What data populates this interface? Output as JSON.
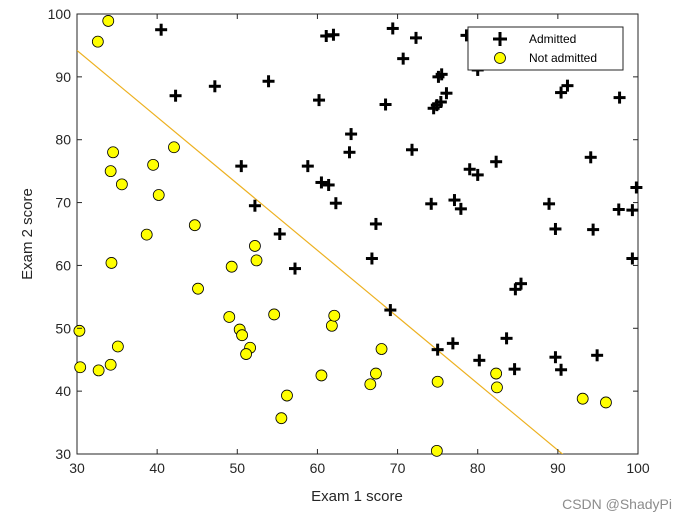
{
  "chart_data": {
    "type": "scatter",
    "title": "",
    "xlabel": "Exam 1 score",
    "ylabel": "Exam 2 score",
    "xlim": [
      30,
      100
    ],
    "ylim": [
      30,
      100
    ],
    "xticks": [
      30,
      40,
      50,
      60,
      70,
      80,
      90,
      100
    ],
    "yticks": [
      30,
      40,
      50,
      60,
      70,
      80,
      90,
      100
    ],
    "grid": false,
    "legend_position": "top-right",
    "colors": {
      "line": "#EDB120",
      "not_admitted_fill": "#FFFF00",
      "marker_edge": "#000000"
    },
    "series": [
      {
        "name": "Admitted",
        "marker": "plus",
        "points": [
          [
            40.5,
            97.5
          ],
          [
            42.3,
            87.0
          ],
          [
            47.2,
            88.5
          ],
          [
            53.9,
            89.3
          ],
          [
            60.2,
            86.3
          ],
          [
            61.1,
            96.5
          ],
          [
            62.0,
            96.7
          ],
          [
            69.4,
            97.7
          ],
          [
            70.7,
            92.9
          ],
          [
            72.3,
            96.2
          ],
          [
            78.6,
            96.6
          ],
          [
            80.0,
            91.1
          ],
          [
            75.1,
            90.0
          ],
          [
            75.5,
            90.4
          ],
          [
            76.1,
            87.4
          ],
          [
            74.5,
            85.0
          ],
          [
            74.9,
            85.5
          ],
          [
            75.4,
            86.0
          ],
          [
            68.5,
            85.6
          ],
          [
            64.2,
            80.9
          ],
          [
            64.0,
            78.0
          ],
          [
            71.8,
            78.4
          ],
          [
            82.3,
            76.5
          ],
          [
            79.0,
            75.3
          ],
          [
            80.0,
            74.4
          ],
          [
            58.8,
            75.8
          ],
          [
            60.5,
            73.2
          ],
          [
            61.4,
            72.8
          ],
          [
            62.3,
            69.9
          ],
          [
            50.5,
            75.8
          ],
          [
            52.2,
            69.5
          ],
          [
            67.3,
            66.6
          ],
          [
            66.8,
            61.1
          ],
          [
            57.2,
            59.5
          ],
          [
            55.3,
            65.0
          ],
          [
            74.2,
            69.8
          ],
          [
            77.1,
            70.4
          ],
          [
            77.9,
            69.0
          ],
          [
            88.9,
            69.8
          ],
          [
            89.7,
            65.8
          ],
          [
            94.4,
            65.7
          ],
          [
            97.6,
            68.9
          ],
          [
            99.3,
            68.8
          ],
          [
            99.8,
            72.4
          ],
          [
            94.1,
            77.2
          ],
          [
            97.7,
            86.7
          ],
          [
            90.4,
            87.5
          ],
          [
            91.2,
            88.6
          ],
          [
            99.3,
            61.1
          ],
          [
            84.7,
            56.2
          ],
          [
            85.4,
            57.1
          ],
          [
            69.1,
            52.9
          ],
          [
            75.0,
            46.6
          ],
          [
            76.9,
            47.6
          ],
          [
            80.2,
            44.9
          ],
          [
            83.6,
            48.4
          ],
          [
            84.6,
            43.5
          ],
          [
            89.7,
            45.4
          ],
          [
            90.4,
            43.4
          ],
          [
            94.9,
            45.7
          ]
        ]
      },
      {
        "name": "Not admitted",
        "marker": "circle",
        "points": [
          [
            33.9,
            98.9
          ],
          [
            32.6,
            95.6
          ],
          [
            34.5,
            78.0
          ],
          [
            34.2,
            75.0
          ],
          [
            35.6,
            72.9
          ],
          [
            39.5,
            76.0
          ],
          [
            40.2,
            71.2
          ],
          [
            42.1,
            78.8
          ],
          [
            38.7,
            64.9
          ],
          [
            44.7,
            66.4
          ],
          [
            34.3,
            60.4
          ],
          [
            45.1,
            56.3
          ],
          [
            49.3,
            59.8
          ],
          [
            52.2,
            63.1
          ],
          [
            52.4,
            60.8
          ],
          [
            49.0,
            51.8
          ],
          [
            50.3,
            49.8
          ],
          [
            50.6,
            48.9
          ],
          [
            51.6,
            46.9
          ],
          [
            51.1,
            45.9
          ],
          [
            54.6,
            52.2
          ],
          [
            56.2,
            39.3
          ],
          [
            55.5,
            35.7
          ],
          [
            60.5,
            42.5
          ],
          [
            61.8,
            50.4
          ],
          [
            62.1,
            52.0
          ],
          [
            66.6,
            41.1
          ],
          [
            67.3,
            42.8
          ],
          [
            68.0,
            46.7
          ],
          [
            75.0,
            41.5
          ],
          [
            82.3,
            42.8
          ],
          [
            82.4,
            40.6
          ],
          [
            93.1,
            38.8
          ],
          [
            96.0,
            38.2
          ],
          [
            74.9,
            30.5
          ],
          [
            30.3,
            49.6
          ],
          [
            30.4,
            43.8
          ],
          [
            32.7,
            43.3
          ],
          [
            34.2,
            44.2
          ],
          [
            35.1,
            47.1
          ]
        ]
      },
      {
        "name": "Decision boundary",
        "type": "line",
        "x": [
          30,
          95
        ],
        "y": [
          94.2,
          25.3
        ]
      }
    ]
  },
  "legend": {
    "admitted_label": "Admitted",
    "not_admitted_label": "Not admitted"
  },
  "watermark": "CSDN @ShadyPi"
}
